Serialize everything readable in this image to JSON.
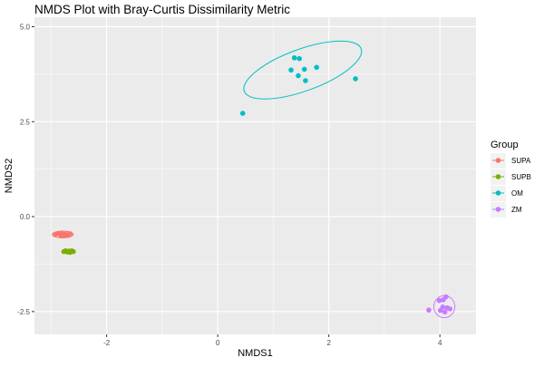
{
  "chart_data": {
    "type": "scatter",
    "title": "NMDS Plot with Bray-Curtis Dissimilarity Metric",
    "xlabel": "NMDS1",
    "ylabel": "NMDS2",
    "xlim": [
      -3.3,
      4.65
    ],
    "ylim": [
      -3.1,
      5.25
    ],
    "x_ticks": [
      -2,
      0,
      2,
      4
    ],
    "x_tick_labels": [
      "-2",
      "0",
      "2",
      "4"
    ],
    "y_ticks": [
      -2.5,
      0,
      2.5,
      5
    ],
    "y_tick_labels": [
      "-2.5",
      "0.0",
      "2.5",
      "5.0"
    ],
    "grid": true,
    "background": "#EBEBEB",
    "legend_title": "Group",
    "legend_position": "right",
    "series": [
      {
        "name": "SUPA",
        "color": "#F8766D",
        "points": [
          [
            -2.92,
            -0.47
          ],
          [
            -2.87,
            -0.44
          ],
          [
            -2.83,
            -0.49
          ],
          [
            -2.8,
            -0.45
          ],
          [
            -2.77,
            -0.5
          ],
          [
            -2.74,
            -0.46
          ],
          [
            -2.7,
            -0.48
          ],
          [
            -2.66,
            -0.45
          ]
        ],
        "ellipse": {
          "cx": -2.79,
          "cy": -0.47,
          "rx": 0.19,
          "ry": 0.09,
          "angle_deg": 0
        }
      },
      {
        "name": "SUPB",
        "color": "#7CAE00",
        "points": [
          [
            -2.77,
            -0.92
          ],
          [
            -2.74,
            -0.9
          ],
          [
            -2.71,
            -0.93
          ],
          [
            -2.68,
            -0.91
          ],
          [
            -2.66,
            -0.94
          ],
          [
            -2.63,
            -0.9
          ],
          [
            -2.6,
            -0.92
          ]
        ],
        "ellipse": {
          "cx": -2.69,
          "cy": -0.92,
          "rx": 0.12,
          "ry": 0.04,
          "angle_deg": 0
        }
      },
      {
        "name": "OM",
        "color": "#00BFC4",
        "points": [
          [
            0.45,
            2.72
          ],
          [
            1.38,
            4.18
          ],
          [
            1.47,
            4.16
          ],
          [
            1.32,
            3.86
          ],
          [
            1.56,
            3.88
          ],
          [
            1.78,
            3.93
          ],
          [
            1.45,
            3.71
          ],
          [
            1.58,
            3.58
          ],
          [
            2.48,
            3.63
          ]
        ],
        "ellipse": {
          "cx": 1.53,
          "cy": 3.86,
          "rx": 1.12,
          "ry": 0.55,
          "angle_deg": 20
        }
      },
      {
        "name": "ZM",
        "color": "#C77CFF",
        "points": [
          [
            3.8,
            -2.46
          ],
          [
            3.99,
            -2.21
          ],
          [
            4.06,
            -2.19
          ],
          [
            4.11,
            -2.11
          ],
          [
            4.05,
            -2.38
          ],
          [
            4.13,
            -2.4
          ],
          [
            4.01,
            -2.47
          ],
          [
            4.09,
            -2.51
          ],
          [
            4.18,
            -2.43
          ]
        ],
        "ellipse": {
          "cx": 4.08,
          "cy": -2.37,
          "rx": 0.19,
          "ry": 0.29,
          "angle_deg": 0
        }
      }
    ]
  }
}
